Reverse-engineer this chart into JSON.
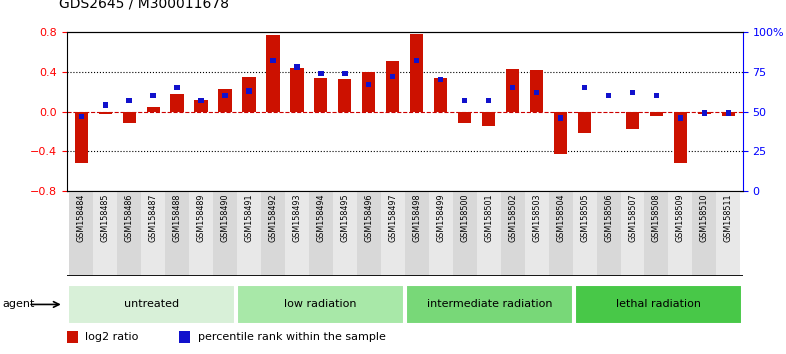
{
  "title": "GDS2645 / M300011678",
  "samples": [
    "GSM158484",
    "GSM158485",
    "GSM158486",
    "GSM158487",
    "GSM158488",
    "GSM158489",
    "GSM158490",
    "GSM158491",
    "GSM158492",
    "GSM158493",
    "GSM158494",
    "GSM158495",
    "GSM158496",
    "GSM158497",
    "GSM158498",
    "GSM158499",
    "GSM158500",
    "GSM158501",
    "GSM158502",
    "GSM158503",
    "GSM158504",
    "GSM158505",
    "GSM158506",
    "GSM158507",
    "GSM158508",
    "GSM158509",
    "GSM158510",
    "GSM158511"
  ],
  "log2_ratio": [
    -0.52,
    -0.03,
    -0.12,
    0.05,
    0.18,
    0.12,
    0.23,
    0.35,
    0.77,
    0.44,
    0.34,
    0.33,
    0.4,
    0.51,
    0.78,
    0.34,
    -0.12,
    -0.15,
    0.43,
    0.42,
    -0.43,
    -0.22,
    0.0,
    -0.18,
    -0.05,
    -0.52,
    -0.02,
    -0.05
  ],
  "percentile": [
    47,
    54,
    57,
    60,
    65,
    57,
    60,
    63,
    82,
    78,
    74,
    74,
    67,
    72,
    82,
    70,
    57,
    57,
    65,
    62,
    46,
    65,
    60,
    62,
    60,
    46,
    49,
    49
  ],
  "groups": [
    {
      "label": "untreated",
      "start": 0,
      "end": 7,
      "color": "#d8f0d8"
    },
    {
      "label": "low radiation",
      "start": 7,
      "end": 14,
      "color": "#a8e8a8"
    },
    {
      "label": "intermediate radiation",
      "start": 14,
      "end": 21,
      "color": "#78d878"
    },
    {
      "label": "lethal radiation",
      "start": 21,
      "end": 28,
      "color": "#48c848"
    }
  ],
  "ylim": [
    -0.8,
    0.8
  ],
  "ylim_right": [
    0,
    100
  ],
  "yticks_left": [
    -0.8,
    -0.4,
    0.0,
    0.4,
    0.8
  ],
  "yticks_right": [
    0,
    25,
    50,
    75,
    100
  ],
  "bar_color_red": "#cc1100",
  "bar_color_blue": "#1111cc",
  "background_color": "#ffffff",
  "zero_line_color": "#cc0000",
  "title_fontsize": 10,
  "tick_fontsize": 8,
  "label_fontsize": 5.8,
  "legend_fontsize": 8,
  "group_fontsize": 8,
  "agent_label": "agent"
}
